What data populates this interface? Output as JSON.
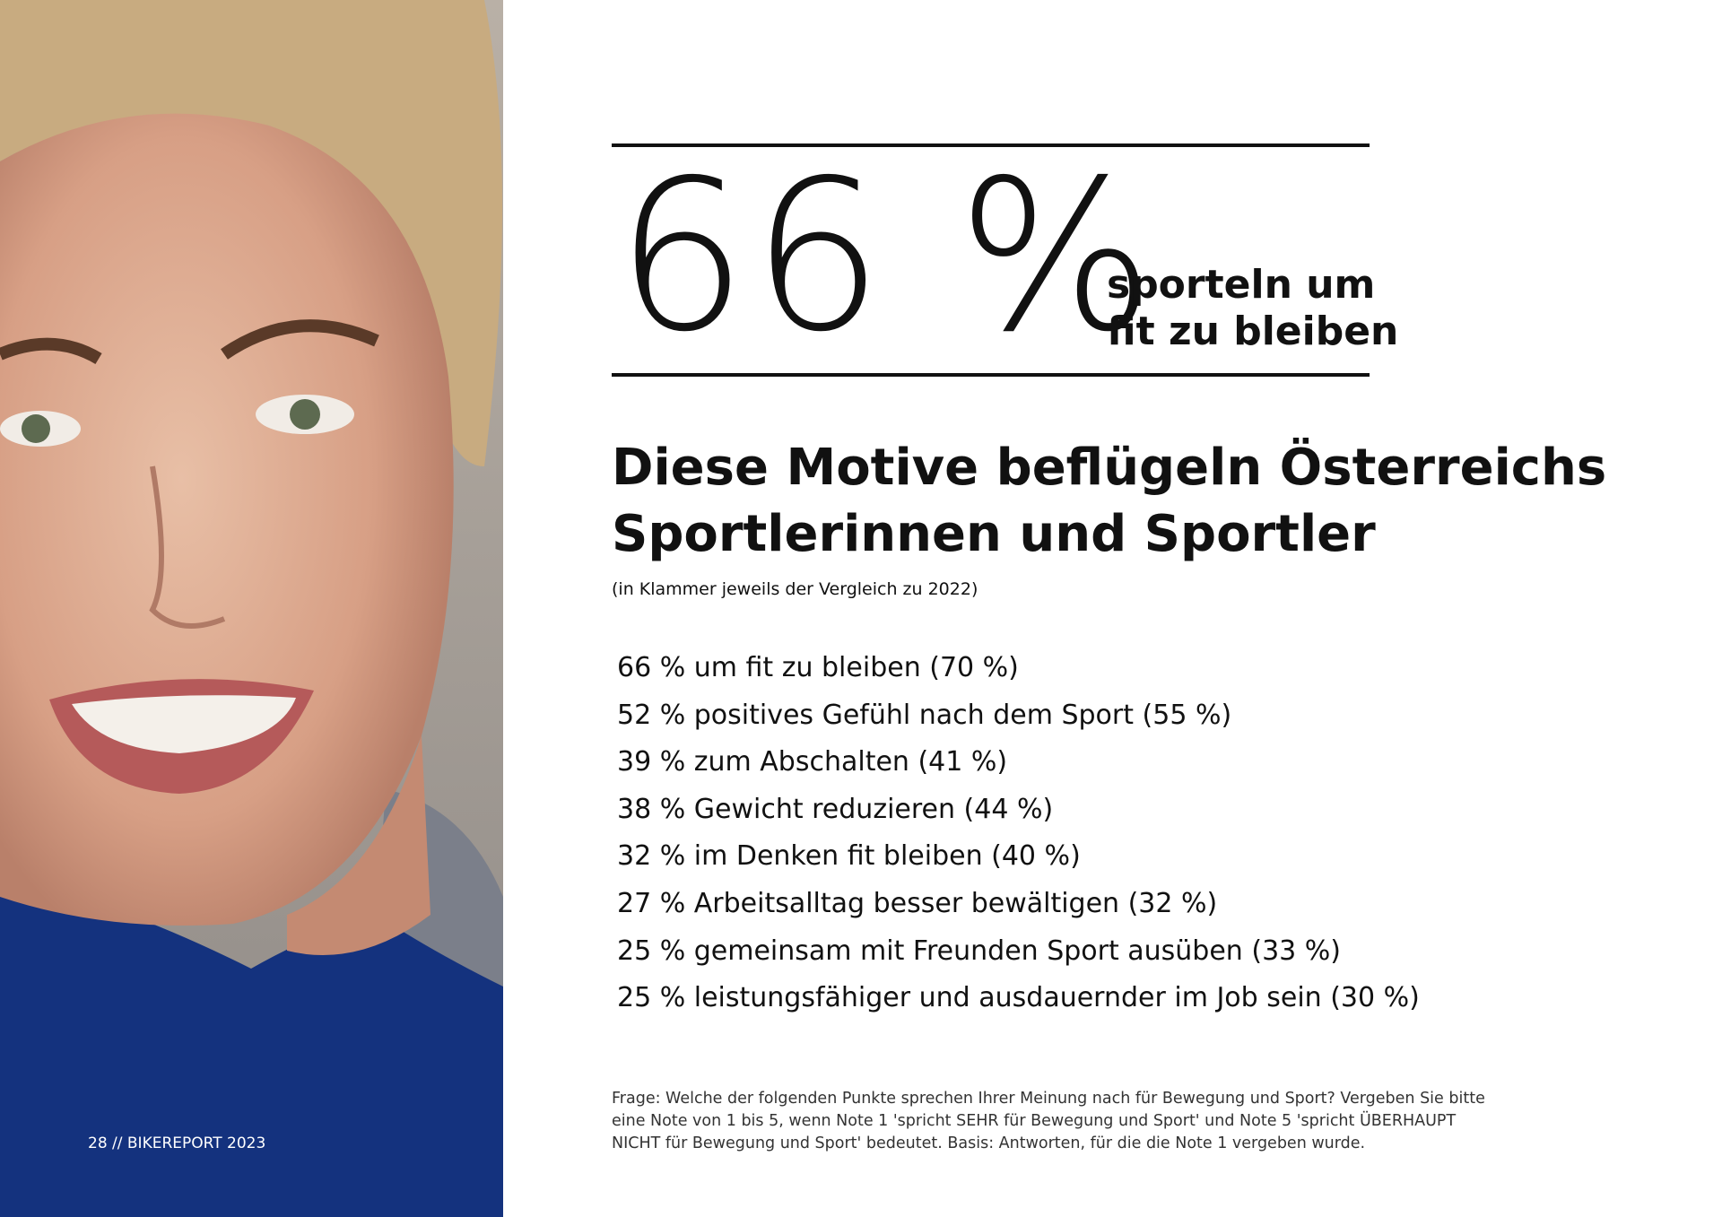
{
  "page_number": "28 // BIKEREPORT 2023",
  "highlight": {
    "figure": "66 %",
    "caption_lines": [
      "sporteln um",
      "fit zu bleiben"
    ]
  },
  "heading": {
    "lines": [
      "Diese Motive beflügeln Österreichs",
      "Sportlerinnen und Sportler"
    ],
    "note": "(in Klammer jeweils der Vergleich zu 2022)"
  },
  "list": [
    "66 % um fit zu bleiben (70 %)",
    "52 % positives Gefühl nach dem Sport (55 %)",
    "39 % zum Abschalten (41 %)",
    "38 % Gewicht reduzieren (44 %)",
    "32 % im Denken fit bleiben (40 %)",
    "27 % Arbeitsalltag besser bewältigen (32 %)",
    "25 % gemeinsam mit Freunden Sport ausüben (33 %)",
    "25 % leistungsfähiger und ausdauernder im Job sein (30 %)"
  ],
  "footnote": {
    "lines": [
      "Frage: Welche der folgenden Punkte sprechen Ihrer Meinung nach für Bewegung und Sport? Vergeben Sie bitte",
      "eine Note von 1 bis 5, wenn Note 1 'spricht SEHR für Bewegung und Sport' und Note 5 'spricht ÜBERHAUPT",
      "NICHT für Bewegung und Sport' bedeutet. Basis: Antworten, für die die Note 1 vergeben wurde."
    ]
  }
}
